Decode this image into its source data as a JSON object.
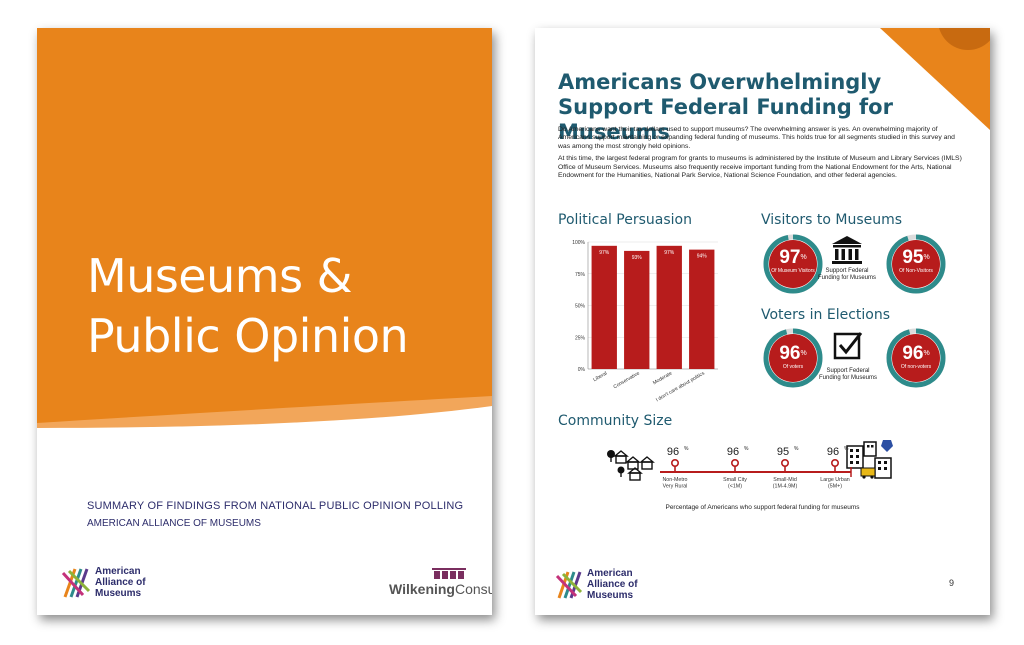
{
  "cover": {
    "title_line1": "Museums &",
    "title_line2": "Public Opinion",
    "subtitle": "SUMMARY OF FINDINGS FROM NATIONAL PUBLIC OPINION POLLING",
    "publisher": "AMERICAN ALLIANCE OF MUSEUMS",
    "logo_lines": [
      "American",
      "Alliance of",
      "Museums"
    ],
    "partner_logo_bold": "Wilkening",
    "partner_logo_rest": "Consulting",
    "colors": {
      "orange": "#E8841B",
      "orange_light": "#F2A65A",
      "navy": "#2D2D6B"
    }
  },
  "report": {
    "title_line1": "Americans Overwhelmingly",
    "title_line2": "Support Federal Funding for Museums",
    "para1": "Do Americans want their tax dollars used to support museums? The overwhelming answer is yes. An overwhelming majority of Americans support maintaining or expanding federal funding of museums. This holds true for all segments studied in this survey and was among the most strongly held opinions.",
    "para2": "At this time, the largest federal program for grants to museums is administered by the Institute of Museum and Library Services (IMLS) Office of Museum Services. Museums also frequently receive important funding from the National Endowment for the Arts, National Endowment for the Humanities, National Park Service, National Science Foundation, and other federal agencies.",
    "political_heading": "Political Persuasion",
    "visitors_heading": "Visitors to Museums",
    "voters_heading": "Voters in Elections",
    "community_heading": "Community Size",
    "visitors": {
      "left_value": "97",
      "left_label": "Of Museum Visitors",
      "right_value": "95",
      "right_label": "Of Non-Visitors",
      "middle_caption": "Support Federal Funding for Museums",
      "left_fraction": 0.97,
      "right_fraction": 0.95
    },
    "voters": {
      "left_value": "96",
      "left_label": "Of voters",
      "right_value": "96",
      "right_label": "Of non-voters",
      "middle_caption": "Support Federal Funding for Museums",
      "left_fraction": 0.96,
      "right_fraction": 0.96
    },
    "percent_sign": "%",
    "community": {
      "points": [
        {
          "value": "96",
          "label_lines": [
            "Non-Metro",
            "Very Rural"
          ]
        },
        {
          "value": "96",
          "label_lines": [
            "Small City",
            "(<1M)"
          ]
        },
        {
          "value": "95",
          "label_lines": [
            "Small-Mid",
            "(1M-4.9M)"
          ]
        },
        {
          "value": "96",
          "label_lines": [
            "Large Urban",
            "(5M+)"
          ]
        }
      ],
      "caption": "Percentage of Americans who support federal funding for museums"
    },
    "page_number": "9",
    "logo_lines": [
      "American",
      "Alliance of",
      "Museums"
    ],
    "colors": {
      "title": "#1F5A6F",
      "bar": "#B71C1C",
      "ring": "#2E8B8B",
      "accent": "#E8841B"
    }
  },
  "chart_data": {
    "type": "bar",
    "categories": [
      "Liberal",
      "Conservative",
      "Moderate",
      "I don't care about politics"
    ],
    "values": [
      97,
      93,
      97,
      94
    ],
    "data_labels": [
      "97%",
      "93%",
      "97%",
      "94%"
    ],
    "yticks": [
      "0%",
      "25%",
      "50%",
      "75%",
      "100%"
    ],
    "ylim": [
      0,
      100
    ],
    "bar_color": "#B71C1C",
    "grid": true
  }
}
